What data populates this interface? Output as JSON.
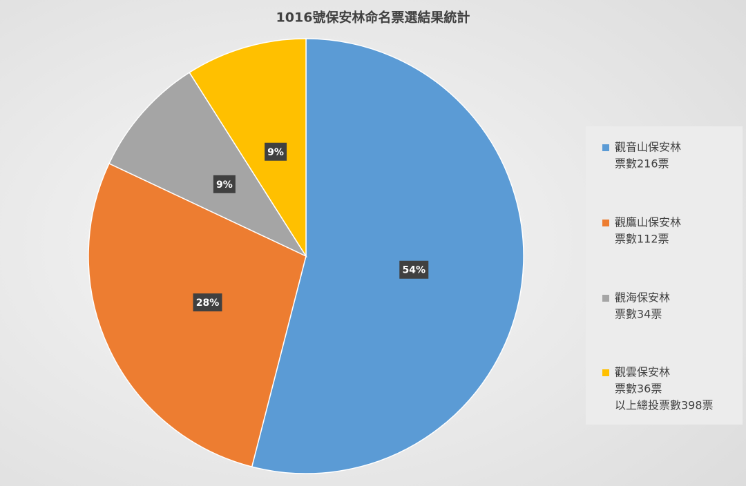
{
  "chart_data": {
    "type": "pie",
    "title": "1016號保安林命名票選結果統計",
    "categories": [
      "觀音山保安林",
      "觀鷹山保安林",
      "觀海保安林",
      "觀雲保安林"
    ],
    "category_notes": [
      "票數216票",
      "票數112票",
      "票數34票",
      "票數36票"
    ],
    "legend_footer": "以上總投票數398票",
    "values": [
      54,
      28,
      9,
      9
    ],
    "value_labels": [
      "54%",
      "28%",
      "9%",
      "9%"
    ],
    "colors": [
      "#5b9bd5",
      "#ed7d31",
      "#a5a5a5",
      "#ffc000"
    ],
    "legend": "right"
  }
}
